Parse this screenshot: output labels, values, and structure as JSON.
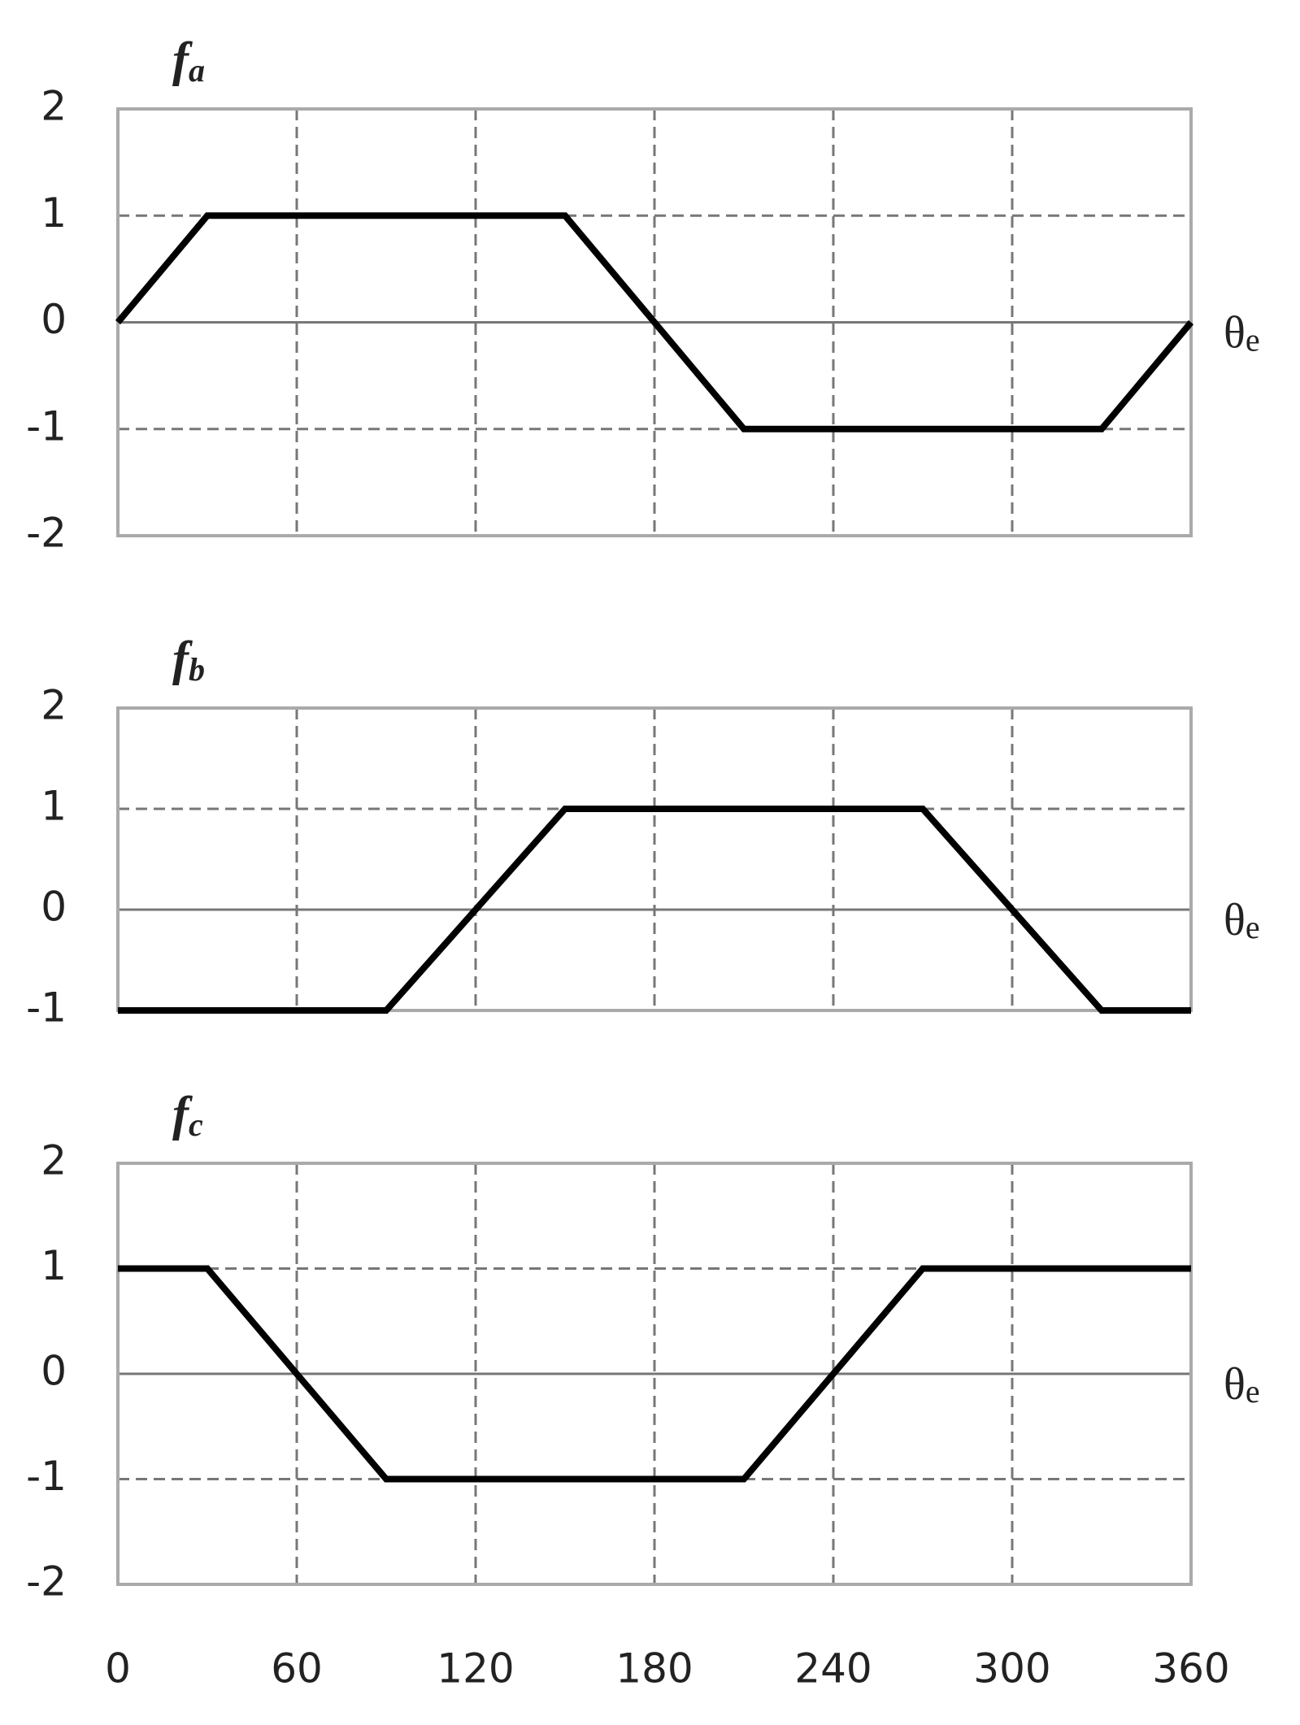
{
  "chart_data": [
    {
      "type": "line",
      "title": "f",
      "title_subscript": "a",
      "x_label": "θ",
      "x_label_subscript": "e",
      "xlim": [
        0,
        360
      ],
      "xticks": [
        0,
        60,
        120,
        180,
        240,
        300,
        360
      ],
      "ylim": [
        -2,
        2
      ],
      "yticks": [
        -2,
        -1,
        0,
        1,
        2
      ],
      "grid": true,
      "series": [
        {
          "color": "#000000",
          "x": [
            0,
            30,
            150,
            210,
            330,
            360
          ],
          "values": [
            0,
            1,
            1,
            -1,
            -1,
            0
          ]
        }
      ]
    },
    {
      "type": "line",
      "title": "f",
      "title_subscript": "b",
      "x_label": "θ",
      "x_label_subscript": "e",
      "xlim": [
        0,
        360
      ],
      "xticks": [
        0,
        60,
        120,
        180,
        240,
        300,
        360
      ],
      "ylim": [
        -1,
        2
      ],
      "yticks": [
        -1,
        0,
        1,
        2
      ],
      "grid": true,
      "series": [
        {
          "color": "#000000",
          "x": [
            0,
            90,
            150,
            270,
            330,
            360
          ],
          "values": [
            -1,
            -1,
            1,
            1,
            -1,
            -1
          ]
        }
      ]
    },
    {
      "type": "line",
      "title": "f",
      "title_subscript": "c",
      "x_label": "θ",
      "x_label_subscript": "e",
      "xlim": [
        0,
        360
      ],
      "xticks": [
        0,
        60,
        120,
        180,
        240,
        300,
        360
      ],
      "ylim": [
        -2,
        2
      ],
      "yticks": [
        -2,
        -1,
        0,
        1,
        2
      ],
      "grid": true,
      "show_x_tick_labels": true,
      "series": [
        {
          "color": "#000000",
          "x": [
            0,
            30,
            90,
            210,
            270,
            360
          ],
          "values": [
            1,
            1,
            -1,
            -1,
            1,
            1
          ]
        }
      ]
    }
  ]
}
